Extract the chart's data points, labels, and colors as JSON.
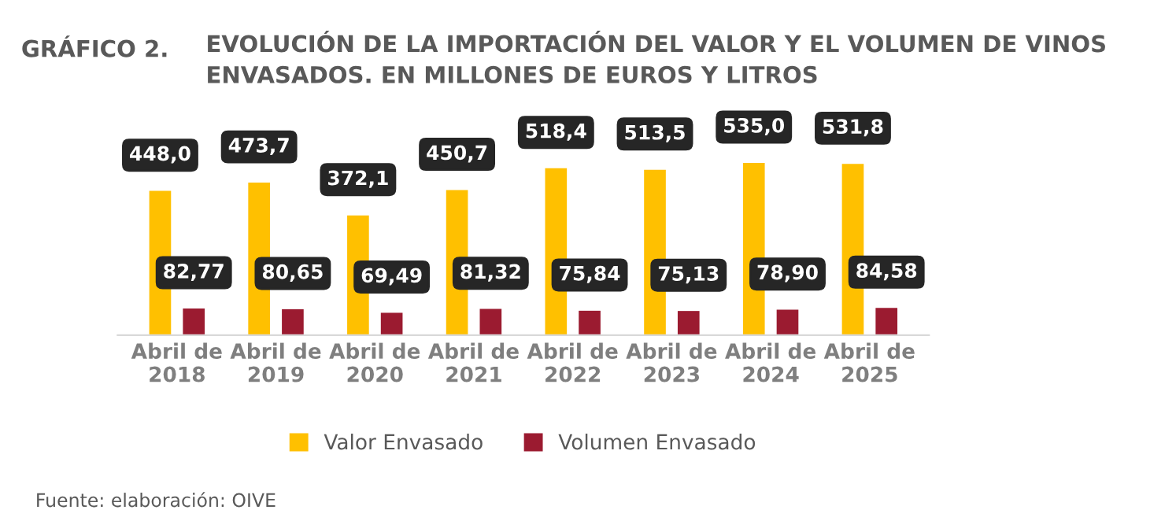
{
  "chart_data": {
    "type": "bar",
    "title": "GRÁFICO 2.",
    "subtitle": "EVOLUCIÓN DE LA IMPORTACIÓN DEL VALOR Y EL VOLUMEN DE VINOS ENVASADOS. EN MILLONES DE EUROS Y LITROS",
    "categories": [
      "Abril de\n2018",
      "Abril de\n2019",
      "Abril de\n2020",
      "Abril de\n2021",
      "Abril de\n2022",
      "Abril de\n2023",
      "Abril de\n2024",
      "Abril de\n2025"
    ],
    "series": [
      {
        "name": "Valor Envasado",
        "color": "#ffc000",
        "values": [
          448.0,
          473.7,
          372.1,
          450.7,
          518.4,
          513.5,
          535.0,
          531.8
        ],
        "value_labels": [
          "448,0",
          "473,7",
          "372,1",
          "450,7",
          "518,4",
          "513,5",
          "535,0",
          "531,8"
        ]
      },
      {
        "name": "Volumen Envasado",
        "color": "#9b1b30",
        "values": [
          82.77,
          80.65,
          69.49,
          81.32,
          75.84,
          75.13,
          78.9,
          84.58
        ],
        "value_labels": [
          "82,77",
          "80,65",
          "69,49",
          "81,32",
          "75,84",
          "75,13",
          "78,90",
          "84,58"
        ]
      }
    ],
    "legend": "bottom",
    "grid": false,
    "tick_labels": "x",
    "annotations": [
      "Fuente: elaboración: OIVE"
    ]
  }
}
